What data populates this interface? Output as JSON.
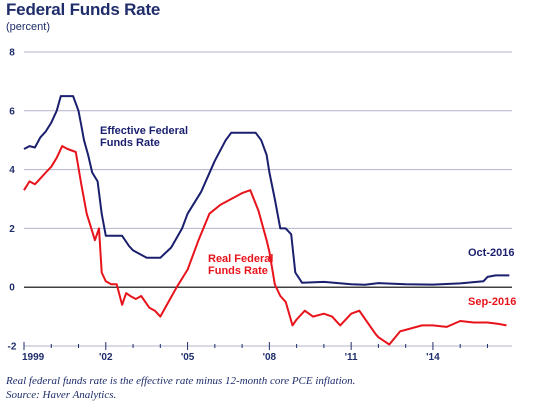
{
  "title": "Federal Funds Rate",
  "subtitle": "(percent)",
  "footnote_1": "Real federal funds rate is the effective rate minus 12-month core PCE inflation.",
  "footnote_2": "Source: Haver Analytics.",
  "colors": {
    "effective": "#1a1f6e",
    "real": "#e8141c",
    "grid": "#b3b3cc",
    "axis_text": "#1f2d6b"
  },
  "chart_data": {
    "type": "line",
    "title": "Federal Funds Rate",
    "ylabel": "(percent)",
    "xlim": [
      1999.0,
      2016.9
    ],
    "ylim": [
      -2,
      8
    ],
    "y_ticks": [
      "8",
      "6",
      "4",
      "2",
      "0",
      "-2"
    ],
    "x_ticks": [
      "1999",
      "'02",
      "'05",
      "'08",
      "'11",
      "'14"
    ],
    "grid": true,
    "annotations": {
      "effective_label_line1": "Effective Federal",
      "effective_label_line2": "Funds Rate",
      "real_label_line1": "Real Federal",
      "real_label_line2": "Funds Rate",
      "end_label_effective": "Oct-2016",
      "end_label_real": "Sep-2016"
    },
    "series": [
      {
        "name": "Effective Federal Funds Rate",
        "x": [
          1999.0,
          1999.2,
          1999.4,
          1999.6,
          1999.8,
          2000.0,
          2000.2,
          2000.35,
          2000.5,
          2000.8,
          2001.0,
          2001.1,
          2001.2,
          2001.35,
          2001.5,
          2001.7,
          2001.85,
          2002.0,
          2002.3,
          2002.6,
          2002.85,
          2003.0,
          2003.5,
          2003.8,
          2004.0,
          2004.4,
          2004.8,
          2005.0,
          2005.5,
          2006.0,
          2006.4,
          2006.6,
          2006.8,
          2007.0,
          2007.3,
          2007.5,
          2007.7,
          2007.9,
          2008.0,
          2008.2,
          2008.4,
          2008.6,
          2008.8,
          2008.95,
          2009.2,
          2010.0,
          2011.0,
          2011.5,
          2012.0,
          2013.0,
          2014.0,
          2015.0,
          2015.85,
          2016.0,
          2016.3,
          2016.8
        ],
        "y": [
          4.7,
          4.8,
          4.75,
          5.1,
          5.3,
          5.6,
          6.0,
          6.5,
          6.5,
          6.5,
          6.0,
          5.5,
          5.0,
          4.5,
          3.9,
          3.6,
          2.5,
          1.75,
          1.75,
          1.75,
          1.4,
          1.25,
          1.0,
          1.0,
          1.0,
          1.35,
          2.0,
          2.5,
          3.25,
          4.3,
          5.0,
          5.25,
          5.25,
          5.25,
          5.25,
          5.25,
          5.0,
          4.5,
          3.9,
          3.0,
          2.0,
          2.0,
          1.8,
          0.5,
          0.15,
          0.18,
          0.1,
          0.08,
          0.14,
          0.1,
          0.09,
          0.13,
          0.2,
          0.35,
          0.4,
          0.4
        ]
      },
      {
        "name": "Real Federal Funds Rate",
        "x": [
          1999.0,
          1999.2,
          1999.4,
          1999.6,
          1999.8,
          2000.0,
          2000.2,
          2000.4,
          2000.6,
          2000.9,
          2001.1,
          2001.3,
          2001.5,
          2001.6,
          2001.75,
          2001.85,
          2002.0,
          2002.2,
          2002.4,
          2002.6,
          2002.75,
          2002.9,
          2003.1,
          2003.3,
          2003.6,
          2003.8,
          2004.0,
          2004.3,
          2004.6,
          2005.0,
          2005.4,
          2005.8,
          2006.2,
          2006.6,
          2007.0,
          2007.3,
          2007.6,
          2007.9,
          2008.0,
          2008.2,
          2008.4,
          2008.6,
          2008.85,
          2009.0,
          2009.3,
          2009.6,
          2010.0,
          2010.3,
          2010.6,
          2011.0,
          2011.3,
          2011.6,
          2011.9,
          2012.0,
          2012.4,
          2012.8,
          2013.2,
          2013.6,
          2014.0,
          2014.5,
          2015.0,
          2015.5,
          2016.0,
          2016.4,
          2016.7
        ],
        "y": [
          3.3,
          3.6,
          3.5,
          3.7,
          3.9,
          4.1,
          4.4,
          4.8,
          4.7,
          4.6,
          3.5,
          2.5,
          1.9,
          1.6,
          2.0,
          0.5,
          0.2,
          0.1,
          0.1,
          -0.6,
          -0.2,
          -0.3,
          -0.4,
          -0.3,
          -0.7,
          -0.8,
          -1.0,
          -0.5,
          0.0,
          0.6,
          1.6,
          2.5,
          2.8,
          3.0,
          3.2,
          3.3,
          2.6,
          1.6,
          1.2,
          0.1,
          -0.3,
          -0.5,
          -1.3,
          -1.1,
          -0.8,
          -1.0,
          -0.9,
          -1.0,
          -1.3,
          -0.9,
          -0.8,
          -1.2,
          -1.6,
          -1.7,
          -1.95,
          -1.5,
          -1.4,
          -1.3,
          -1.3,
          -1.35,
          -1.15,
          -1.2,
          -1.2,
          -1.25,
          -1.3
        ]
      }
    ]
  }
}
